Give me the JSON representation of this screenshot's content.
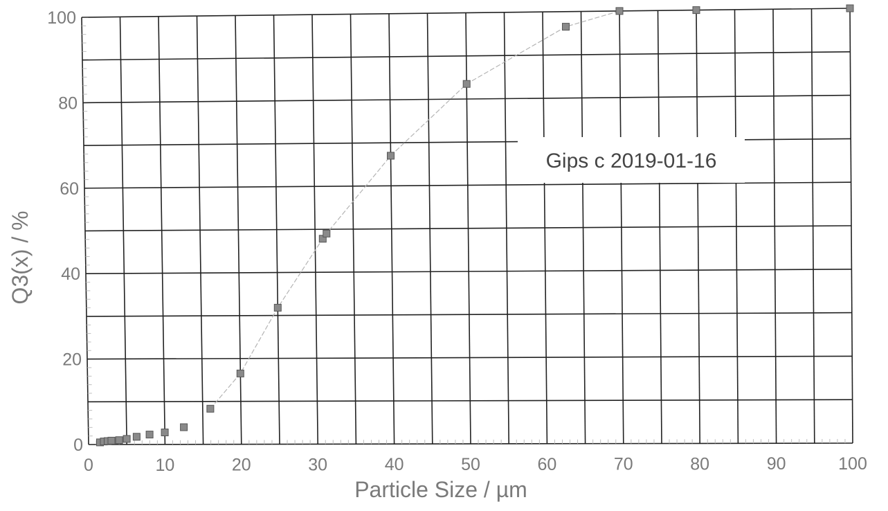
{
  "chart_data": {
    "type": "scatter",
    "xlabel": "Particle Size / µm",
    "ylabel": "Q3(x) / %",
    "xlim": [
      0,
      100
    ],
    "ylim": [
      0,
      100
    ],
    "x_ticks": [
      "0",
      "10",
      "20",
      "30",
      "40",
      "50",
      "60",
      "70",
      "80",
      "90",
      "100"
    ],
    "y_ticks": [
      "0",
      "20",
      "40",
      "60",
      "80",
      "100"
    ],
    "grid": true,
    "annotation": "Gips c 2019-01-16",
    "series": [
      {
        "marker": "square",
        "points": [
          {
            "x": 1.5,
            "y": 0.5
          },
          {
            "x": 2.0,
            "y": 0.7
          },
          {
            "x": 2.5,
            "y": 0.8
          },
          {
            "x": 3.0,
            "y": 0.9
          },
          {
            "x": 4.0,
            "y": 1.0
          },
          {
            "x": 5.0,
            "y": 1.3
          },
          {
            "x": 6.3,
            "y": 1.8
          },
          {
            "x": 8.0,
            "y": 2.3
          },
          {
            "x": 10.0,
            "y": 2.8
          },
          {
            "x": 12.5,
            "y": 4.0
          },
          {
            "x": 16.0,
            "y": 8.3
          },
          {
            "x": 20.0,
            "y": 16.5
          },
          {
            "x": 25.0,
            "y": 31.8
          },
          {
            "x": 31.0,
            "y": 47.8
          },
          {
            "x": 31.5,
            "y": 49.0
          },
          {
            "x": 40.0,
            "y": 67.0
          },
          {
            "x": 50.0,
            "y": 83.5
          },
          {
            "x": 63.0,
            "y": 96.5
          },
          {
            "x": 70.0,
            "y": 100.0
          },
          {
            "x": 80.0,
            "y": 100.0
          },
          {
            "x": 100.0,
            "y": 100.0
          }
        ]
      }
    ],
    "colors": {
      "marker_fill": "#8a8a8a",
      "marker_stroke": "#555555",
      "grid": "#222222",
      "curve": "#b4b4b4",
      "text": "#7a7a7a"
    }
  }
}
